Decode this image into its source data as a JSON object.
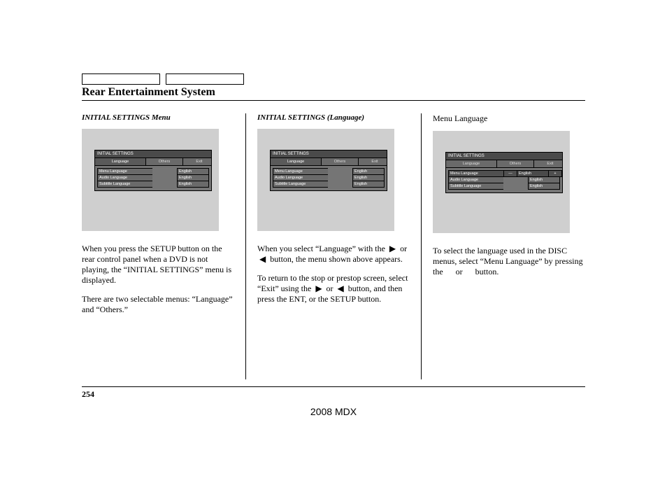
{
  "section_title": "Rear Entertainment System",
  "page_number": "254",
  "footer_model": "2008  MDX",
  "triangle_right": "▶",
  "triangle_left": "◀",
  "columns": [
    {
      "heading": "INITIAL SETTINGS Menu",
      "heading_style": "italic",
      "screen": {
        "title": "INITIAL SETTINGS",
        "tabs": [
          {
            "label": "Language",
            "selected": true
          },
          {
            "label": "Others",
            "selected": false
          },
          {
            "label": "Exit",
            "selected": false
          }
        ],
        "rows": [
          {
            "left": "Menu Language",
            "right": "English",
            "row_hl": false
          },
          {
            "left": "Audio Language",
            "right": "English",
            "row_hl": false
          },
          {
            "left": "Subtitle Language",
            "right": "English",
            "row_hl": false
          }
        ],
        "show_arrows": false
      },
      "paragraphs": [
        "When you press the SETUP button on the rear control panel when a DVD is not playing, the “INITIAL SETTINGS” menu is displayed.",
        "There are two selectable menus: “Language” and “Others.”"
      ]
    },
    {
      "heading": "INITIAL SETTINGS (Language)",
      "heading_style": "italic",
      "screen": {
        "title": "INITIAL SETTINGS",
        "tabs": [
          {
            "label": "Language",
            "selected": true
          },
          {
            "label": "Others",
            "selected": false
          },
          {
            "label": "Exit",
            "selected": false
          }
        ],
        "rows": [
          {
            "left": "Menu Language",
            "right": "English",
            "row_hl": false
          },
          {
            "left": "Audio Language",
            "right": "English",
            "row_hl": false
          },
          {
            "left": "Subtitle Language",
            "right": "English",
            "row_hl": false
          }
        ],
        "show_arrows": false
      },
      "paragraphs_html": [
        "When you select “Language” with the  ▶  or  ◀  button, the menu shown above appears.",
        "To return to the stop or prestop screen, select “Exit” using the  ▶  or  ◀  button, and then press the ENT, or the SETUP button."
      ]
    },
    {
      "heading": "Menu Language",
      "heading_style": "plain",
      "screen": {
        "title": "INITIAL SETTINGS",
        "tabs": [
          {
            "label": "Language",
            "selected": false
          },
          {
            "label": "Others",
            "selected": false
          },
          {
            "label": "Exit",
            "selected": false
          }
        ],
        "rows": [
          {
            "left": "Menu Language",
            "right": "English",
            "row_hl": true
          },
          {
            "left": "Audio Language",
            "right": "English",
            "row_hl": false
          },
          {
            "left": "Subtitle Language",
            "right": "English",
            "row_hl": false
          }
        ],
        "show_arrows": true
      },
      "paragraphs": [
        "To select the language used in the DISC menus, select “Menu Language” by pressing the      or      button."
      ]
    }
  ]
}
